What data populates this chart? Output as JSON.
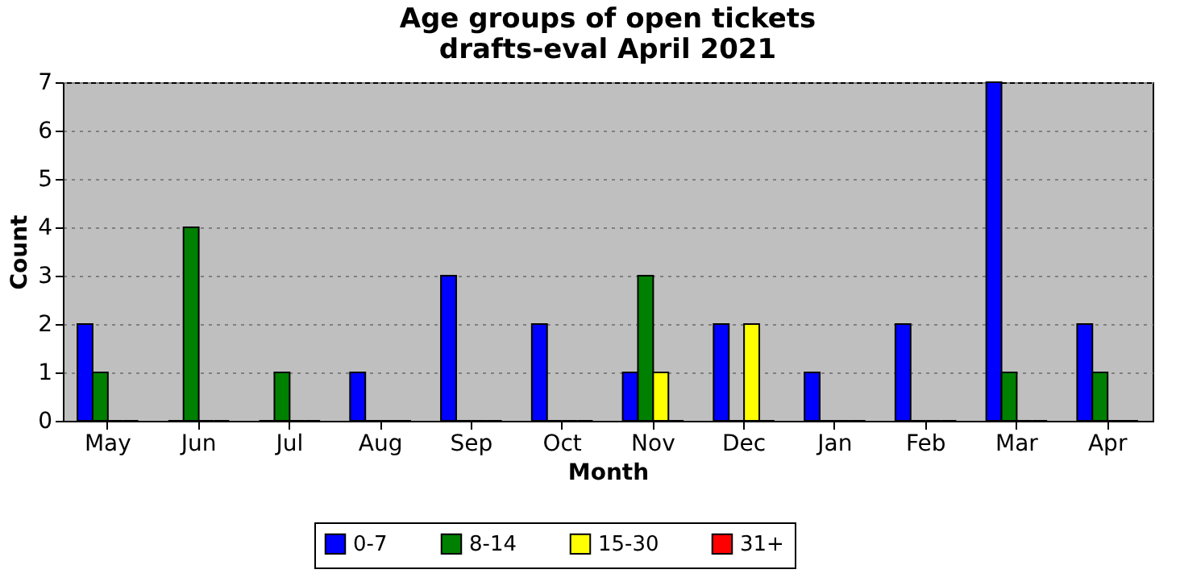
{
  "chart_data": {
    "type": "bar",
    "title": "Age groups of open tickets\ndrafts-eval April 2021",
    "xlabel": "Month",
    "ylabel": "Count",
    "categories": [
      "May",
      "Jun",
      "Jul",
      "Aug",
      "Sep",
      "Oct",
      "Nov",
      "Dec",
      "Jan",
      "Feb",
      "Mar",
      "Apr"
    ],
    "series": [
      {
        "name": "0-7",
        "color": "#0000ff",
        "values": [
          2,
          0,
          0,
          1,
          3,
          2,
          1,
          2,
          1,
          2,
          7,
          2
        ]
      },
      {
        "name": "8-14",
        "color": "#008000",
        "values": [
          1,
          4,
          1,
          0,
          0,
          0,
          3,
          0,
          0,
          0,
          1,
          1
        ]
      },
      {
        "name": "15-30",
        "color": "#ffff00",
        "values": [
          0,
          0,
          0,
          0,
          0,
          0,
          1,
          2,
          0,
          0,
          0,
          0
        ]
      },
      {
        "name": "31+",
        "color": "#ff0000",
        "values": [
          0,
          0,
          0,
          0,
          0,
          0,
          0,
          0,
          0,
          0,
          0,
          0
        ]
      }
    ],
    "ylim": [
      0,
      7
    ],
    "yticks": [
      0,
      1,
      2,
      3,
      4,
      5,
      6,
      7
    ],
    "grid": "y",
    "legend": "bottom"
  }
}
